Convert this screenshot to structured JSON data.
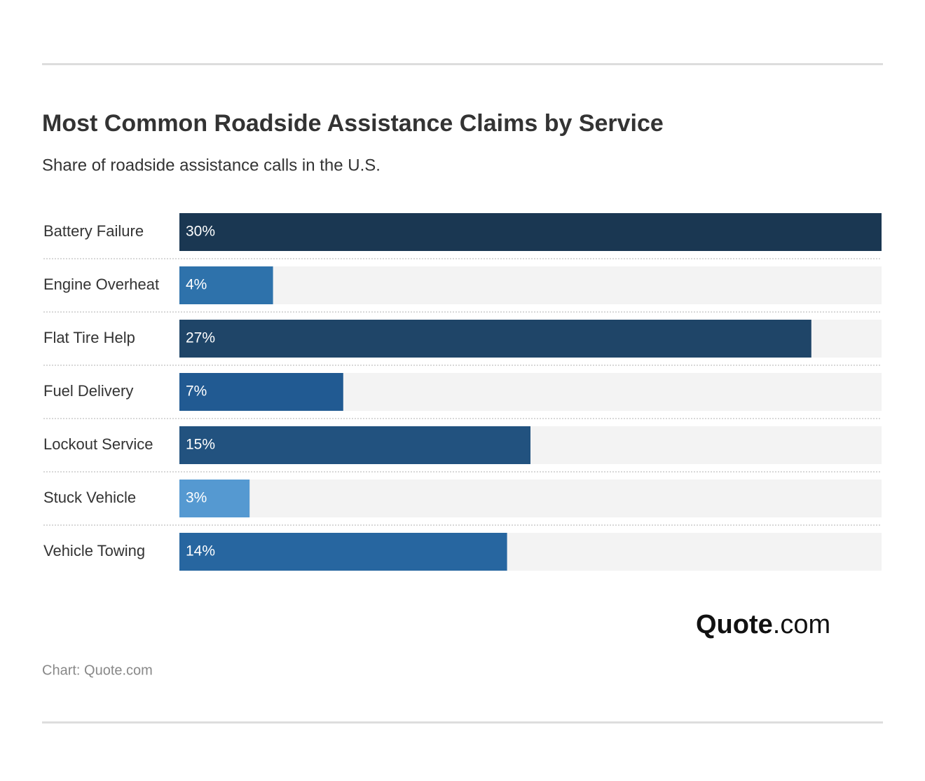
{
  "chart_data": {
    "type": "bar",
    "title": "Most Common Roadside Assistance Claims by Service",
    "subtitle": "Share of roadside assistance calls in the U.S.",
    "categories": [
      "Battery Failure",
      "Engine Overheat",
      "Flat Tire Help",
      "Fuel Delivery",
      "Lockout Service",
      "Stuck Vehicle",
      "Vehicle Towing"
    ],
    "values": [
      30,
      4,
      27,
      7,
      15,
      3,
      14
    ],
    "value_labels": [
      "30%",
      "4%",
      "27%",
      "7%",
      "15%",
      "3%",
      "14%"
    ],
    "colors": [
      "#1a3752",
      "#2e72ab",
      "#1f4568",
      "#215a92",
      "#22527f",
      "#5599d1",
      "#2766a0"
    ],
    "xlim": [
      0,
      30
    ],
    "source": "Chart: Quote.com",
    "logo": [
      "Quote",
      ".com"
    ]
  }
}
